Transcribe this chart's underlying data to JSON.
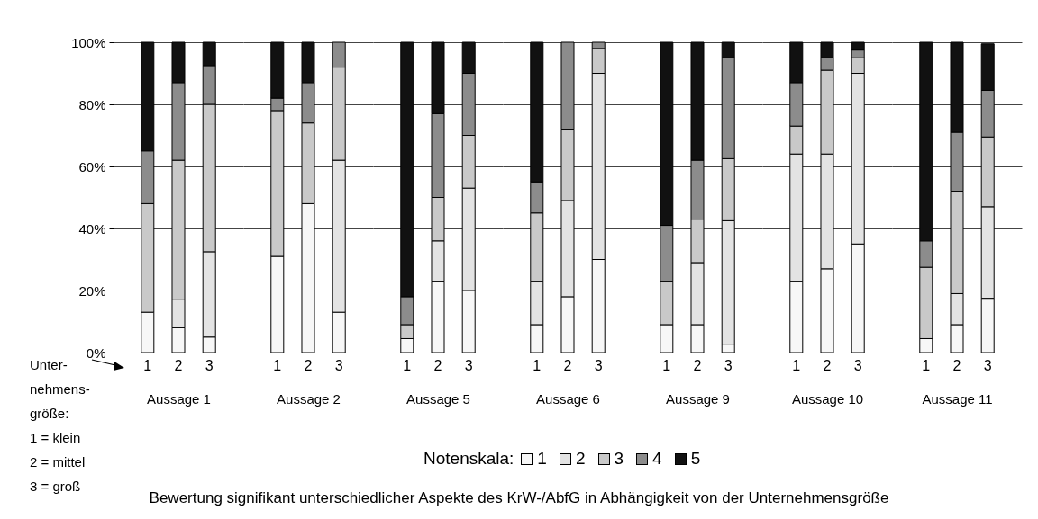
{
  "chart_data": [
    {
      "type": "bar",
      "stacked": true,
      "categories": [
        "1",
        "2",
        "3"
      ],
      "xlabel": "Aussage 1",
      "ylim": [
        0,
        100
      ],
      "yticks": [
        {
          "value": 0,
          "label": "0%"
        },
        {
          "value": 20,
          "label": "20%"
        },
        {
          "value": 40,
          "label": "40%"
        },
        {
          "value": 60,
          "label": "60%"
        },
        {
          "value": 80,
          "label": "80%"
        },
        {
          "value": 100,
          "label": "100%"
        }
      ],
      "grid": "y",
      "legend": "bottom",
      "legend_title": "Notenskala:",
      "annotations": [
        "Unter-\nnehmens-\ngröße:\n1 = klein\n2 = mittel\n3 = groß",
        "Bewertung signifikant unterschiedlicher Aspekte des KrW-/AbfG in Abhängigkeit von der Unternehmensgröße"
      ],
      "series": [
        {
          "name": "1",
          "color": "#f7f7f7",
          "values": [
            13,
            8,
            5
          ]
        },
        {
          "name": "2",
          "color": "#e3e3e3",
          "values": [
            0,
            9,
            27.5
          ]
        },
        {
          "name": "3",
          "color": "#c9c9c9",
          "values": [
            35,
            45,
            47.5
          ]
        },
        {
          "name": "4",
          "color": "#8c8c8c",
          "values": [
            17,
            25,
            12.5
          ]
        },
        {
          "name": "5",
          "color": "#111111",
          "values": [
            35,
            13,
            7.5
          ]
        }
      ]
    },
    {
      "type": "bar",
      "stacked": true,
      "categories": [
        "1",
        "2",
        "3"
      ],
      "xlabel": "Aussage 2",
      "ylim": [
        0,
        100
      ],
      "yticks": [
        {
          "value": 0,
          "label": null
        },
        {
          "value": 20,
          "label": null
        },
        {
          "value": 40,
          "label": null
        },
        {
          "value": 60,
          "label": null
        },
        {
          "value": 80,
          "label": null
        },
        {
          "value": 100,
          "label": null
        }
      ],
      "grid": "y",
      "tick_labels": "x",
      "series": [
        {
          "color": "#f7f7f7",
          "values": [
            31,
            48,
            13
          ]
        },
        {
          "color": "#e3e3e3",
          "values": [
            0,
            0,
            49
          ]
        },
        {
          "color": "#c9c9c9",
          "values": [
            47,
            26,
            30
          ]
        },
        {
          "color": "#8c8c8c",
          "values": [
            4,
            13,
            8
          ]
        },
        {
          "color": "#111111",
          "values": [
            18,
            13,
            0
          ]
        }
      ]
    },
    {
      "type": "bar",
      "stacked": true,
      "categories": [
        "1",
        "2",
        "3"
      ],
      "xlabel": "Aussage 5",
      "ylim": [
        0,
        100
      ],
      "yticks": [
        {
          "value": 0,
          "label": null
        },
        {
          "value": 20,
          "label": null
        },
        {
          "value": 40,
          "label": null
        },
        {
          "value": 60,
          "label": null
        },
        {
          "value": 80,
          "label": null
        },
        {
          "value": 100,
          "label": null
        }
      ],
      "grid": "y",
      "tick_labels": "x",
      "series": [
        {
          "color": "#f7f7f7",
          "values": [
            4.5,
            23,
            20
          ]
        },
        {
          "color": "#e3e3e3",
          "values": [
            0,
            13,
            33
          ]
        },
        {
          "color": "#c9c9c9",
          "values": [
            4.5,
            14,
            17
          ]
        },
        {
          "color": "#8c8c8c",
          "values": [
            9,
            27,
            20
          ]
        },
        {
          "color": "#111111",
          "values": [
            82,
            23,
            10
          ]
        }
      ]
    },
    {
      "type": "bar",
      "stacked": true,
      "categories": [
        "1",
        "2",
        "3"
      ],
      "xlabel": "Aussage 6",
      "ylim": [
        0,
        100
      ],
      "yticks": [
        {
          "value": 0,
          "label": null
        },
        {
          "value": 20,
          "label": null
        },
        {
          "value": 40,
          "label": null
        },
        {
          "value": 60,
          "label": null
        },
        {
          "value": 80,
          "label": null
        },
        {
          "value": 100,
          "label": null
        }
      ],
      "grid": "y",
      "tick_labels": "x",
      "series": [
        {
          "color": "#f7f7f7",
          "values": [
            9,
            18,
            30
          ]
        },
        {
          "color": "#e3e3e3",
          "values": [
            14,
            31,
            60
          ]
        },
        {
          "color": "#c9c9c9",
          "values": [
            22,
            23,
            8
          ]
        },
        {
          "color": "#8c8c8c",
          "values": [
            10,
            28,
            2
          ]
        },
        {
          "color": "#111111",
          "values": [
            45,
            0,
            0
          ]
        }
      ]
    },
    {
      "type": "bar",
      "stacked": true,
      "categories": [
        "1",
        "2",
        "3"
      ],
      "xlabel": "Aussage 9",
      "ylim": [
        0,
        100
      ],
      "yticks": [
        {
          "value": 0,
          "label": null
        },
        {
          "value": 20,
          "label": null
        },
        {
          "value": 40,
          "label": null
        },
        {
          "value": 60,
          "label": null
        },
        {
          "value": 80,
          "label": null
        },
        {
          "value": 100,
          "label": null
        }
      ],
      "grid": "y",
      "tick_labels": "x",
      "series": [
        {
          "color": "#f7f7f7",
          "values": [
            9,
            9,
            2.5
          ]
        },
        {
          "color": "#e3e3e3",
          "values": [
            0,
            20,
            40
          ]
        },
        {
          "color": "#c9c9c9",
          "values": [
            14,
            14,
            20
          ]
        },
        {
          "color": "#8c8c8c",
          "values": [
            18,
            19,
            32.5
          ]
        },
        {
          "color": "#111111",
          "values": [
            59,
            38,
            5
          ]
        }
      ]
    },
    {
      "type": "bar",
      "stacked": true,
      "categories": [
        "1",
        "2",
        "3"
      ],
      "xlabel": "Aussage 10",
      "ylim": [
        0,
        100
      ],
      "yticks": [
        {
          "value": 0,
          "label": null
        },
        {
          "value": 20,
          "label": null
        },
        {
          "value": 40,
          "label": null
        },
        {
          "value": 60,
          "label": null
        },
        {
          "value": 80,
          "label": null
        },
        {
          "value": 100,
          "label": null
        }
      ],
      "grid": "y",
      "tick_labels": "x",
      "series": [
        {
          "color": "#f7f7f7",
          "values": [
            23,
            27,
            35
          ]
        },
        {
          "color": "#e3e3e3",
          "values": [
            41,
            37,
            55
          ]
        },
        {
          "color": "#c9c9c9",
          "values": [
            9,
            27,
            5
          ]
        },
        {
          "color": "#8c8c8c",
          "values": [
            14,
            4,
            2.5
          ]
        },
        {
          "color": "#111111",
          "values": [
            13,
            5,
            2.5
          ]
        }
      ]
    },
    {
      "type": "bar",
      "stacked": true,
      "categories": [
        "1",
        "2",
        "3"
      ],
      "xlabel": "Aussage 11",
      "ylim": [
        0,
        100
      ],
      "yticks": [
        {
          "value": 0,
          "label": null
        },
        {
          "value": 20,
          "label": null
        },
        {
          "value": 40,
          "label": null
        },
        {
          "value": 60,
          "label": null
        },
        {
          "value": 80,
          "label": null
        },
        {
          "value": 100,
          "label": null
        }
      ],
      "grid": "y",
      "tick_labels": "x",
      "series": [
        {
          "color": "#f7f7f7",
          "values": [
            4.5,
            9,
            17.5
          ]
        },
        {
          "color": "#e3e3e3",
          "values": [
            0,
            10,
            29.5
          ]
        },
        {
          "color": "#c9c9c9",
          "values": [
            23,
            33,
            22.5
          ]
        },
        {
          "color": "#8c8c8c",
          "values": [
            8.5,
            19,
            15
          ]
        },
        {
          "color": "#111111",
          "values": [
            64,
            29,
            15
          ]
        }
      ]
    }
  ]
}
